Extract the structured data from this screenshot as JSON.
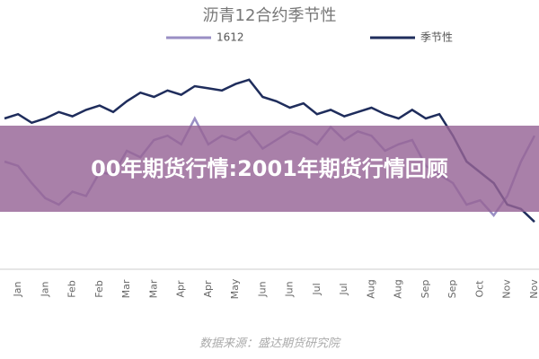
{
  "chart_data": {
    "type": "line",
    "title": "沥青12合约季节性",
    "source": "数据来源：盛达期货研究院",
    "categories": [
      "Jan",
      null,
      "Jan",
      null,
      "Feb",
      null,
      "Feb",
      null,
      "Mar",
      null,
      "Mar",
      null,
      "Apr",
      null,
      "Apr",
      null,
      "May",
      null,
      "Jun",
      null,
      "Jun",
      null,
      "Jul",
      null,
      "Jul",
      null,
      "Aug",
      null,
      "Aug",
      null,
      "Sep",
      null,
      "Sep",
      null,
      "Oct",
      null,
      "Nov",
      null,
      "Nov",
      null
    ],
    "series": [
      {
        "name": "1612",
        "color": "#9a8fc4",
        "values": [
          50,
          48,
          40,
          33,
          30,
          36,
          34,
          45,
          44,
          55,
          52,
          60,
          62,
          58,
          70,
          58,
          62,
          60,
          64,
          56,
          60,
          64,
          62,
          58,
          66,
          60,
          64,
          62,
          55,
          58,
          60,
          48,
          44,
          40,
          30,
          32,
          25,
          34,
          50,
          62
        ]
      },
      {
        "name": "季节性",
        "color": "#1f2d5c",
        "values": [
          70,
          72,
          68,
          70,
          73,
          71,
          74,
          76,
          73,
          78,
          82,
          80,
          83,
          81,
          85,
          84,
          83,
          86,
          88,
          80,
          78,
          75,
          77,
          72,
          74,
          71,
          73,
          75,
          72,
          70,
          74,
          70,
          72,
          62,
          50,
          45,
          40,
          30,
          28,
          22
        ]
      }
    ],
    "ylim": [
      0,
      100
    ]
  },
  "banner": {
    "text": "00年期货行情:2001年期货行情回顾"
  }
}
